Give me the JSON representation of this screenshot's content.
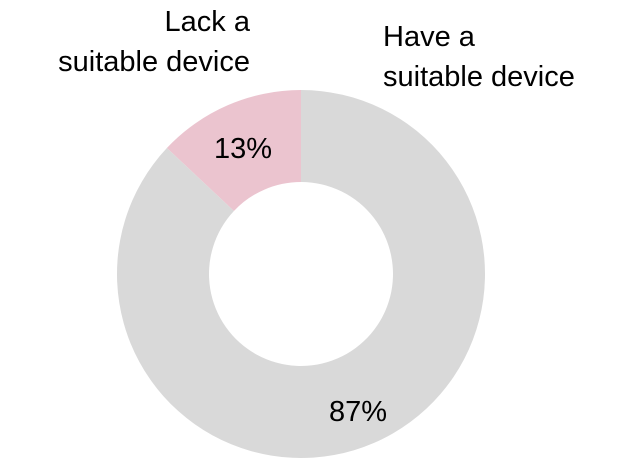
{
  "chart_data": {
    "type": "pie",
    "subtype": "donut",
    "categories": [
      "Lack a suitable device",
      "Have a suitable device"
    ],
    "values": [
      13,
      87
    ],
    "unit": "%",
    "label_lines": [
      [
        "Lack a",
        "suitable device"
      ],
      [
        "Have a",
        "suitable device"
      ]
    ],
    "value_labels": [
      "13%",
      "87%"
    ],
    "colors": [
      "#ebc4cf",
      "#d9d9d9"
    ],
    "title": "",
    "legend": "none"
  }
}
